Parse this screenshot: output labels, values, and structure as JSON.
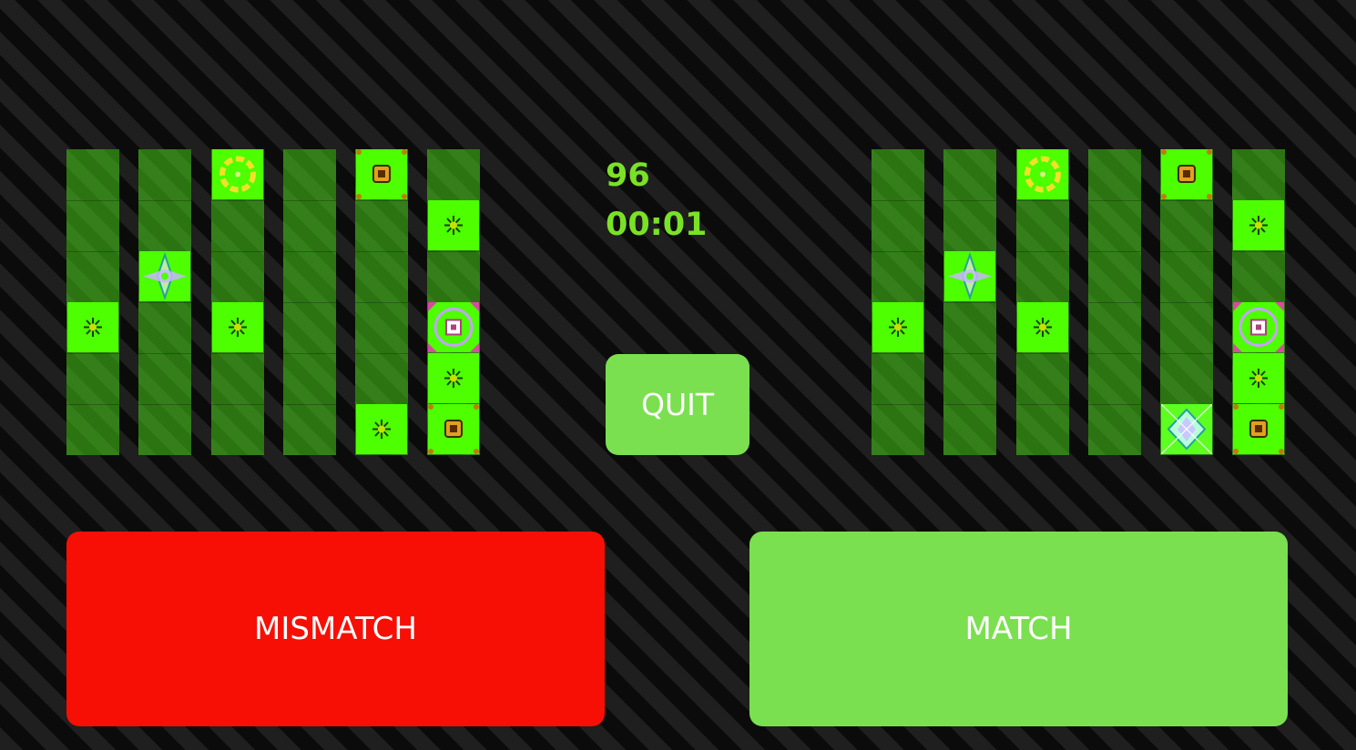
{
  "stats": {
    "score": "96",
    "timer": "00:01"
  },
  "buttons": {
    "quit": "QUIT",
    "mismatch": "MISMATCH",
    "match": "MATCH"
  },
  "colors": {
    "background": "#1c1c1c",
    "column": "#2d7a12",
    "tile": "#4dff00",
    "accent_text": "#7ae225",
    "match": "#7ae04f",
    "mismatch": "#f70f05"
  },
  "boards": {
    "left": [
      [
        {
          "row": 3,
          "icon": "star"
        }
      ],
      [
        {
          "row": 2,
          "icon": "diamond"
        }
      ],
      [
        {
          "row": 0,
          "icon": "ring"
        },
        {
          "row": 3,
          "icon": "star"
        }
      ],
      [],
      [
        {
          "row": 0,
          "icon": "box"
        },
        {
          "row": 5,
          "icon": "star"
        }
      ],
      [
        {
          "row": 1,
          "icon": "star"
        },
        {
          "row": 3,
          "icon": "octa"
        },
        {
          "row": 4,
          "icon": "star"
        },
        {
          "row": 5,
          "icon": "box"
        }
      ]
    ],
    "right": [
      [
        {
          "row": 3,
          "icon": "star"
        }
      ],
      [
        {
          "row": 2,
          "icon": "diamond"
        }
      ],
      [
        {
          "row": 0,
          "icon": "ring"
        },
        {
          "row": 3,
          "icon": "star"
        }
      ],
      [],
      [
        {
          "row": 0,
          "icon": "box"
        },
        {
          "row": 5,
          "icon": "mosaic"
        }
      ],
      [
        {
          "row": 1,
          "icon": "star"
        },
        {
          "row": 3,
          "icon": "octa"
        },
        {
          "row": 4,
          "icon": "star"
        },
        {
          "row": 5,
          "icon": "box"
        }
      ]
    ]
  }
}
